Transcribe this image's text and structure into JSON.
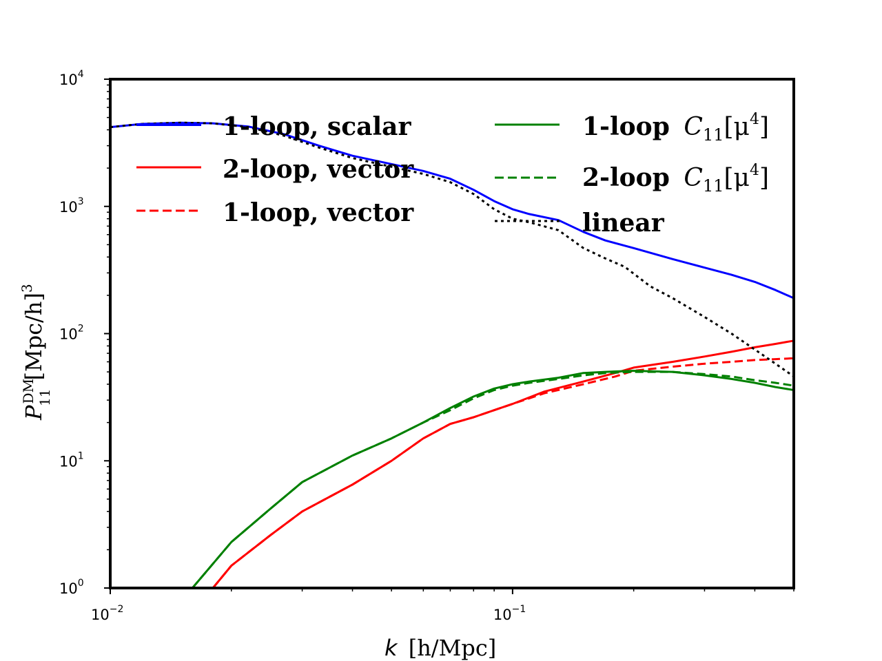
{
  "chart_data": {
    "type": "line",
    "xscale": "log",
    "yscale": "log",
    "xlim": [
      0.01,
      0.5
    ],
    "ylim": [
      1,
      10000
    ],
    "xlabel": {
      "k": "k",
      "rest": "[h/Mpc]"
    },
    "ylabel": {
      "P": "P",
      "sup": "DM",
      "sub": "11",
      "rest": "[Mpc/h]",
      "exp": "3"
    },
    "x_ticks": [
      {
        "value": 0.01,
        "base": "10",
        "exp": "−2"
      },
      {
        "value": 0.1,
        "base": "10",
        "exp": "−1"
      }
    ],
    "y_ticks": [
      {
        "value": 1,
        "base": "10",
        "exp": "0"
      },
      {
        "value": 10,
        "base": "10",
        "exp": "1"
      },
      {
        "value": 100,
        "base": "10",
        "exp": "2"
      },
      {
        "value": 1000,
        "base": "10",
        "exp": "3"
      },
      {
        "value": 10000,
        "base": "10",
        "exp": "4"
      }
    ],
    "legend_placement": "top",
    "series": [
      {
        "name": "1-loop, scalar",
        "color": "#0000ff",
        "dash": "solid",
        "points": [
          [
            0.01,
            4200
          ],
          [
            0.012,
            4450
          ],
          [
            0.015,
            4550
          ],
          [
            0.018,
            4500
          ],
          [
            0.022,
            4250
          ],
          [
            0.027,
            3700
          ],
          [
            0.033,
            3000
          ],
          [
            0.04,
            2500
          ],
          [
            0.05,
            2150
          ],
          [
            0.06,
            1900
          ],
          [
            0.07,
            1650
          ],
          [
            0.08,
            1350
          ],
          [
            0.09,
            1100
          ],
          [
            0.1,
            950
          ],
          [
            0.11,
            870
          ],
          [
            0.13,
            780
          ],
          [
            0.15,
            630
          ],
          [
            0.17,
            540
          ],
          [
            0.2,
            470
          ],
          [
            0.25,
            385
          ],
          [
            0.3,
            330
          ],
          [
            0.35,
            290
          ],
          [
            0.4,
            255
          ],
          [
            0.45,
            220
          ],
          [
            0.5,
            190
          ]
        ]
      },
      {
        "name": "2-loop, vector",
        "color": "#ff0000",
        "dash": "solid",
        "points": [
          [
            0.018,
            1
          ],
          [
            0.02,
            1.5
          ],
          [
            0.025,
            2.6
          ],
          [
            0.03,
            4
          ],
          [
            0.04,
            6.5
          ],
          [
            0.05,
            10
          ],
          [
            0.06,
            15
          ],
          [
            0.07,
            19.5
          ],
          [
            0.08,
            22
          ],
          [
            0.09,
            25
          ],
          [
            0.1,
            28
          ],
          [
            0.12,
            35
          ],
          [
            0.15,
            42
          ],
          [
            0.18,
            49
          ],
          [
            0.2,
            54
          ],
          [
            0.25,
            60
          ],
          [
            0.3,
            66
          ],
          [
            0.35,
            72
          ],
          [
            0.4,
            78
          ],
          [
            0.45,
            83
          ],
          [
            0.5,
            88
          ]
        ]
      },
      {
        "name": "1-loop, vector",
        "color": "#ff0000",
        "dash": "dashed",
        "points": [
          [
            0.018,
            1
          ],
          [
            0.02,
            1.5
          ],
          [
            0.025,
            2.6
          ],
          [
            0.03,
            4
          ],
          [
            0.04,
            6.5
          ],
          [
            0.05,
            10
          ],
          [
            0.06,
            15
          ],
          [
            0.07,
            19.5
          ],
          [
            0.08,
            22
          ],
          [
            0.09,
            25
          ],
          [
            0.1,
            28
          ],
          [
            0.12,
            34
          ],
          [
            0.15,
            40
          ],
          [
            0.18,
            46
          ],
          [
            0.2,
            51
          ],
          [
            0.25,
            55
          ],
          [
            0.3,
            58
          ],
          [
            0.35,
            60
          ],
          [
            0.4,
            62
          ],
          [
            0.45,
            63
          ],
          [
            0.5,
            64
          ]
        ]
      },
      {
        "name": "1-loop C₁₁[μ⁴]",
        "color": "#008000",
        "dash": "solid",
        "points": [
          [
            0.016,
            1
          ],
          [
            0.02,
            2.3
          ],
          [
            0.025,
            4.2
          ],
          [
            0.03,
            6.8
          ],
          [
            0.04,
            11
          ],
          [
            0.05,
            15
          ],
          [
            0.06,
            20
          ],
          [
            0.07,
            26
          ],
          [
            0.08,
            32
          ],
          [
            0.09,
            37
          ],
          [
            0.1,
            40
          ],
          [
            0.11,
            42
          ],
          [
            0.13,
            45
          ],
          [
            0.15,
            49
          ],
          [
            0.17,
            50
          ],
          [
            0.2,
            51
          ],
          [
            0.25,
            50
          ],
          [
            0.3,
            47
          ],
          [
            0.35,
            44
          ],
          [
            0.4,
            41
          ],
          [
            0.45,
            38
          ],
          [
            0.5,
            36
          ]
        ]
      },
      {
        "name": "2-loop C₁₁[μ⁴]",
        "color": "#008000",
        "dash": "dashed",
        "points": [
          [
            0.016,
            1
          ],
          [
            0.02,
            2.3
          ],
          [
            0.025,
            4.2
          ],
          [
            0.03,
            6.8
          ],
          [
            0.04,
            11
          ],
          [
            0.05,
            15
          ],
          [
            0.06,
            20
          ],
          [
            0.07,
            25
          ],
          [
            0.08,
            31
          ],
          [
            0.09,
            36
          ],
          [
            0.1,
            39
          ],
          [
            0.11,
            41
          ],
          [
            0.13,
            44
          ],
          [
            0.15,
            47
          ],
          [
            0.17,
            49
          ],
          [
            0.2,
            50
          ],
          [
            0.25,
            50
          ],
          [
            0.3,
            48
          ],
          [
            0.35,
            46
          ],
          [
            0.4,
            43
          ],
          [
            0.45,
            41
          ],
          [
            0.5,
            39
          ]
        ]
      },
      {
        "name": "linear",
        "color": "#000000",
        "dash": "dotted",
        "points": [
          [
            0.01,
            4200
          ],
          [
            0.012,
            4450
          ],
          [
            0.015,
            4550
          ],
          [
            0.018,
            4500
          ],
          [
            0.022,
            4200
          ],
          [
            0.027,
            3600
          ],
          [
            0.033,
            2900
          ],
          [
            0.04,
            2400
          ],
          [
            0.05,
            2050
          ],
          [
            0.06,
            1800
          ],
          [
            0.07,
            1550
          ],
          [
            0.08,
            1250
          ],
          [
            0.09,
            950
          ],
          [
            0.1,
            800
          ],
          [
            0.11,
            750
          ],
          [
            0.13,
            650
          ],
          [
            0.15,
            470
          ],
          [
            0.17,
            390
          ],
          [
            0.19,
            335
          ],
          [
            0.22,
            235
          ],
          [
            0.25,
            190
          ],
          [
            0.3,
            135
          ],
          [
            0.35,
            100
          ],
          [
            0.4,
            75
          ],
          [
            0.45,
            58
          ],
          [
            0.5,
            46
          ]
        ]
      }
    ]
  },
  "legend": {
    "left": [
      {
        "label": "1-loop, scalar"
      },
      {
        "label": "2-loop, vector"
      },
      {
        "label": "1-loop, vector"
      }
    ],
    "right": [
      {
        "prefix": "1-loop",
        "C": "C",
        "sub": "11",
        "br": "[μ",
        "sup": "4",
        "close": "]"
      },
      {
        "prefix": "2-loop",
        "C": "C",
        "sub": "11",
        "br": "[μ",
        "sup": "4",
        "close": "]"
      },
      {
        "label": "linear"
      }
    ]
  }
}
